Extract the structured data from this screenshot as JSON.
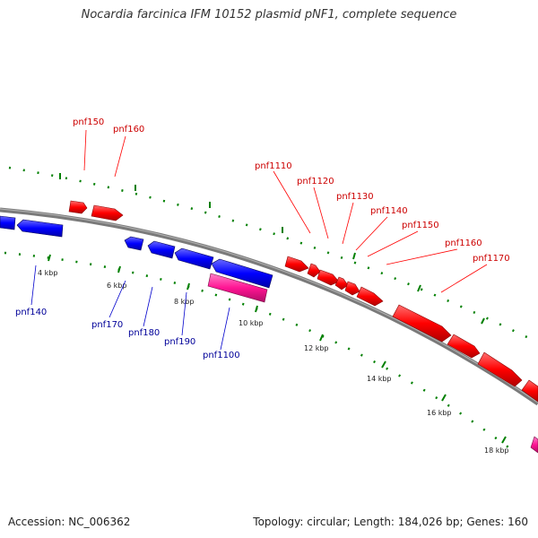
{
  "title": "Nocardia farcinica IFM 10152 plasmid pNF1, complete sequence",
  "footer": {
    "accession": "Accession: NC_006362",
    "summary": "Topology: circular; Length: 184,026 bp; Genes: 160"
  },
  "colors": {
    "forward_gene": "#ff0000",
    "reverse_gene": "#0000ff",
    "rna_gene": "#ff1493",
    "backbone": "#808080",
    "tick": "#008000",
    "forward_label": "#cc0000",
    "reverse_label": "#000099"
  },
  "scale_labels": [
    "4 kbp",
    "6 kbp",
    "8 kbp",
    "10 kbp",
    "12 kbp",
    "14 kbp",
    "16 kbp",
    "18 kbp"
  ],
  "gene_labels": {
    "forward": [
      "pnf150",
      "pnf160",
      "pnf1110",
      "pnf1120",
      "pnf1130",
      "pnf1140",
      "pnf1150",
      "pnf1160",
      "pnf1170"
    ],
    "reverse": [
      "pnf140",
      "pnf170",
      "pnf180",
      "pnf190",
      "pnf1100"
    ]
  }
}
